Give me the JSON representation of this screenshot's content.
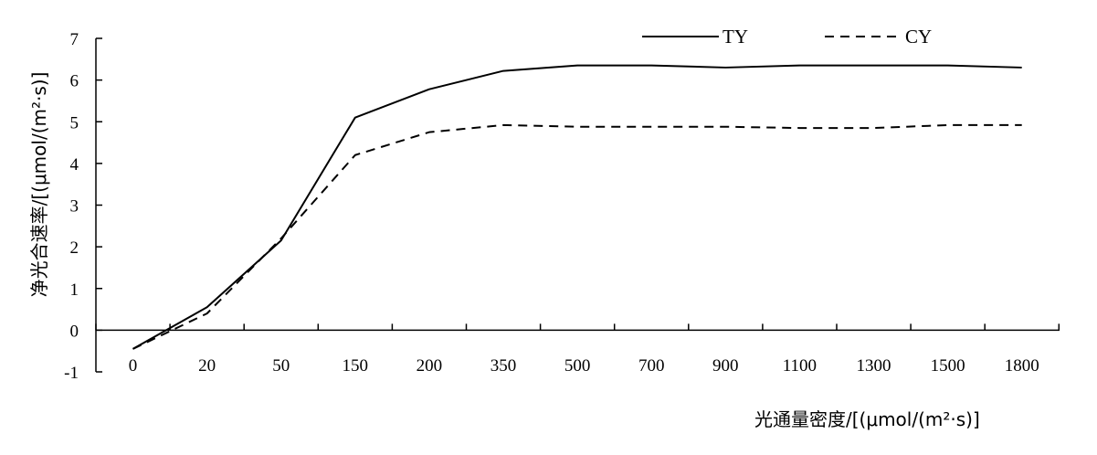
{
  "chart_data": {
    "type": "line",
    "categories": [
      "0",
      "20",
      "50",
      "150",
      "200",
      "350",
      "500",
      "700",
      "900",
      "1100",
      "1300",
      "1500",
      "1800"
    ],
    "x_ticks": [
      "0",
      "20",
      "50",
      "150",
      "200",
      "350",
      "500",
      "700",
      "900",
      "1100",
      "1300",
      "1500",
      "1800"
    ],
    "y_ticks": [
      "-1",
      "0",
      "1",
      "2",
      "3",
      "4",
      "5",
      "6",
      "7"
    ],
    "series": [
      {
        "name": "TY",
        "style": "solid",
        "values": [
          -0.45,
          0.55,
          2.15,
          5.1,
          5.78,
          6.22,
          6.35,
          6.35,
          6.3,
          6.35,
          6.35,
          6.35,
          6.3
        ]
      },
      {
        "name": "CY",
        "style": "dashed",
        "values": [
          -0.45,
          0.4,
          2.2,
          4.2,
          4.75,
          4.92,
          4.88,
          4.88,
          4.88,
          4.85,
          4.85,
          4.92,
          4.92
        ]
      }
    ],
    "xlabel": "光通量密度/[(μmol/(m²·s)]",
    "ylabel": "净光合速率/[(μmol/(m²·s)]",
    "ylim": [
      -1,
      7
    ],
    "grid": false,
    "legend_position": "top-right",
    "line_color": "#000000"
  }
}
